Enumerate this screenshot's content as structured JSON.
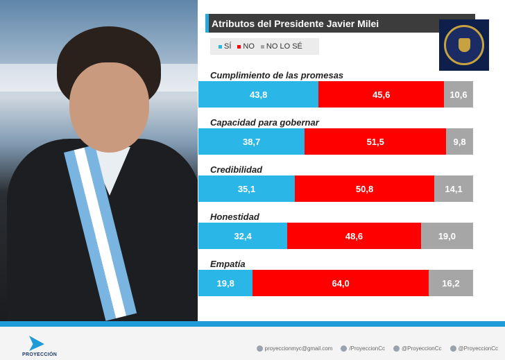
{
  "title": "Atributos del Presidente Javier Milei",
  "legend": [
    {
      "label": "SÍ",
      "color": "#2ab7e8"
    },
    {
      "label": "NO",
      "color": "#ff0000"
    },
    {
      "label": "NO LO SÉ",
      "color": "#a6a6a6"
    }
  ],
  "chart_data": {
    "type": "bar",
    "orientation": "horizontal-stacked-100",
    "title": "Atributos del Presidente Javier Milei",
    "categories": [
      "Cumplimiento de las promesas",
      "Capacidad para gobernar",
      "Credibilidad",
      "Honestidad",
      "Empatía"
    ],
    "series": [
      {
        "name": "SÍ",
        "color": "#2ab7e8",
        "values": [
          43.8,
          38.7,
          35.1,
          32.4,
          19.8
        ],
        "labels": [
          "43,8",
          "38,7",
          "35,1",
          "32,4",
          "19,8"
        ]
      },
      {
        "name": "NO",
        "color": "#ff0000",
        "values": [
          45.6,
          51.5,
          50.8,
          48.6,
          64.0
        ],
        "labels": [
          "45,6",
          "51,5",
          "50,8",
          "48,6",
          "64,0"
        ]
      },
      {
        "name": "NO LO SÉ",
        "color": "#a6a6a6",
        "values": [
          10.6,
          9.8,
          14.1,
          19.0,
          16.2
        ],
        "labels": [
          "10,6",
          "9,8",
          "14,1",
          "19,0",
          "16,2"
        ]
      }
    ],
    "legend_position": "top-left"
  },
  "footer": {
    "brand": "PROYECCIÓN",
    "contacts": [
      {
        "icon": "email-icon",
        "text": "proyeccionmyc@gmail.com"
      },
      {
        "icon": "facebook-icon",
        "text": "/ProyeccionCc"
      },
      {
        "icon": "twitter-icon",
        "text": "@ProyeccionCc"
      },
      {
        "icon": "instagram-icon",
        "text": "@ProyeccionCc"
      }
    ]
  }
}
